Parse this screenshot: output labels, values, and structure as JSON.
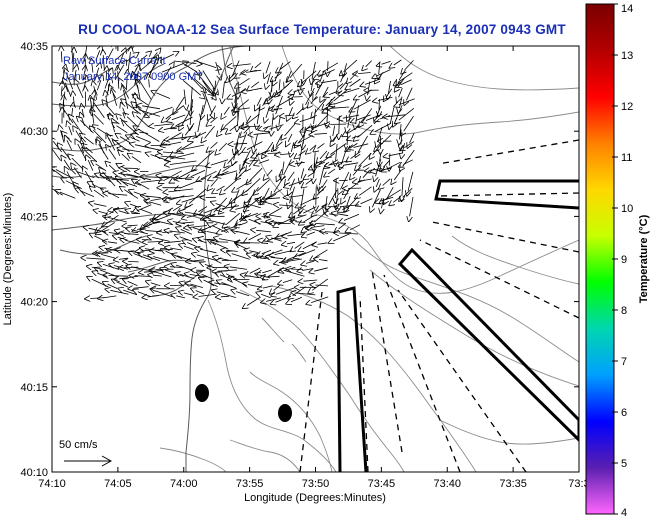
{
  "title": "RU COOL  NOAA-12  Sea Surface Temperature:  January 14, 2007 0943 GMT",
  "legend": {
    "line1": "Raw Surface Current",
    "line2": "January 14, 2007 0900 GMT"
  },
  "scale_label": "50 cm/s",
  "x_axis": {
    "label": "Longitude (Degrees:Minutes)",
    "ticks": [
      "74:10",
      "74:05",
      "74:00",
      "73:55",
      "73:50",
      "73:45",
      "73:40",
      "73:35",
      "73:3"
    ]
  },
  "y_axis": {
    "label": "Latitude (Degrees:Minutes)",
    "ticks": [
      "40:35",
      "40:30",
      "40:25",
      "40:20",
      "40:15",
      "40:10"
    ]
  },
  "colorbar": {
    "label": "Temperature (°C)",
    "ticks": [
      "14",
      "13",
      "12",
      "11",
      "10",
      "9",
      "8",
      "7",
      "6",
      "5",
      "4"
    ],
    "colors": [
      "#ff66ff",
      "#5a1fb0",
      "#0000ff",
      "#00a0ff",
      "#00d6b0",
      "#00ff00",
      "#c8ff00",
      "#ffd700",
      "#ff8000",
      "#ff0000",
      "#b40000",
      "#7a0000"
    ]
  },
  "chart_data": {
    "type": "map",
    "x_range_deg": [
      -74.1667,
      -73.5
    ],
    "y_range_deg": [
      40.1667,
      40.5833
    ],
    "color_range_c": [
      4,
      14
    ],
    "features": [
      "coastline",
      "bathymetry contours",
      "surface current vectors",
      "dashed shipping lanes",
      "closed regions"
    ]
  }
}
